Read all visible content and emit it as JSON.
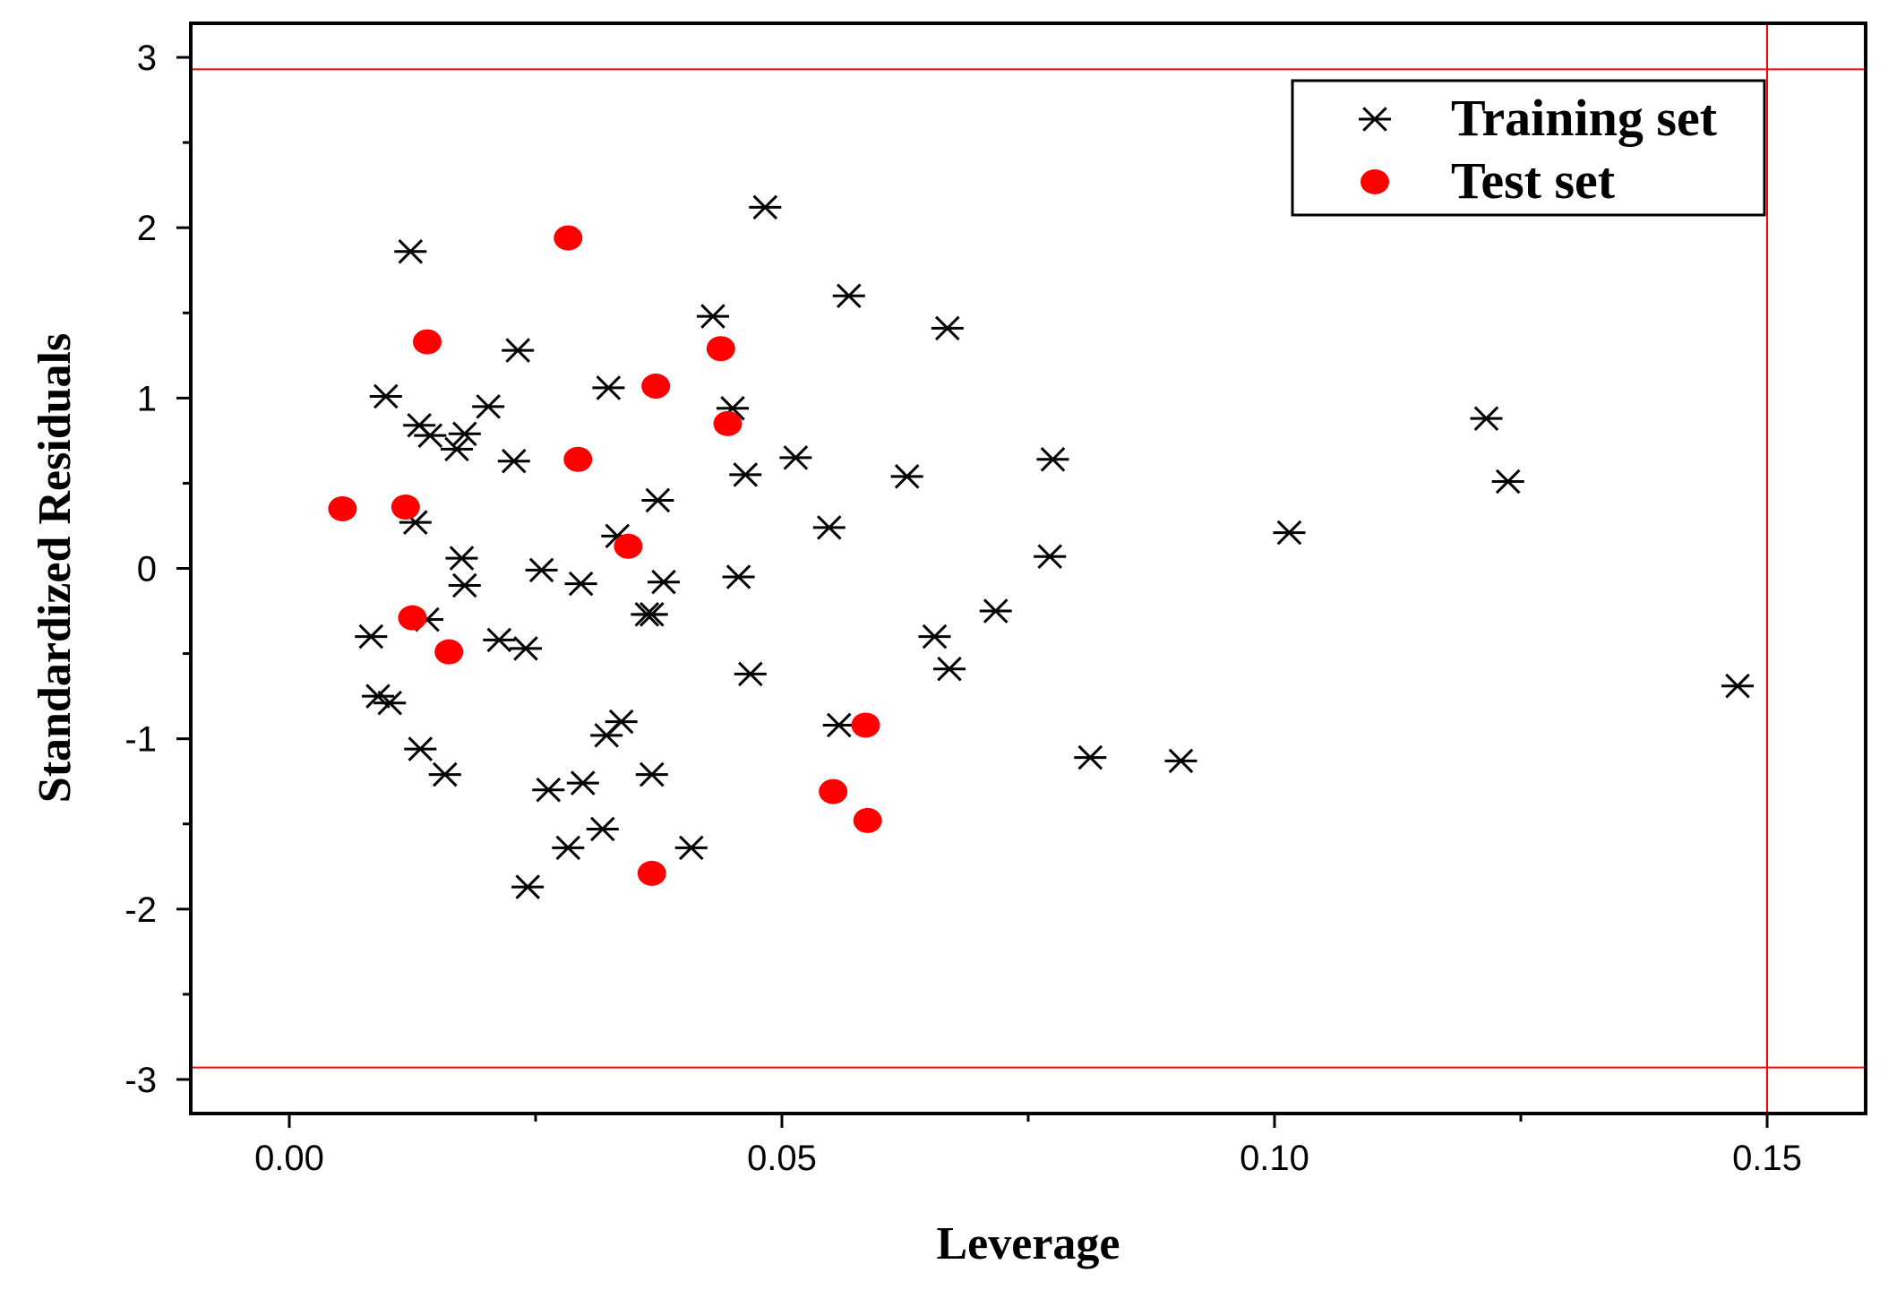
{
  "chart_data": {
    "type": "scatter",
    "xlabel": "Leverage",
    "ylabel": "Standardized Residuals",
    "xlim": [
      -0.01,
      0.16
    ],
    "ylim": [
      -3.2,
      3.2
    ],
    "xticks": [
      0.0,
      0.05,
      0.1,
      0.15
    ],
    "xtick_labels": [
      "0.00",
      "0.05",
      "0.10",
      "0.15"
    ],
    "yticks": [
      -3,
      -2,
      -1,
      0,
      1,
      2,
      3
    ],
    "ytick_labels": [
      "-3",
      "-2",
      "-1",
      "0",
      "1",
      "2",
      "3"
    ],
    "grid": false,
    "legend_position": "top-right",
    "reference_lines": {
      "horizontal": [
        2.93,
        -2.93
      ],
      "vertical": [
        0.15
      ],
      "color": "#ff0000"
    },
    "series": [
      {
        "name": "Training set",
        "marker": "asterisk",
        "color": "#000000",
        "points": [
          [
            0.0083,
            -0.4
          ],
          [
            0.009,
            -0.75
          ],
          [
            0.0098,
            1.01
          ],
          [
            0.0102,
            -0.79
          ],
          [
            0.0123,
            1.86
          ],
          [
            0.0128,
            0.27
          ],
          [
            0.0132,
            0.84
          ],
          [
            0.0133,
            -1.06
          ],
          [
            0.014,
            -0.3
          ],
          [
            0.0143,
            0.78
          ],
          [
            0.0158,
            -1.21
          ],
          [
            0.017,
            0.7
          ],
          [
            0.0175,
            0.06
          ],
          [
            0.0178,
            -0.1
          ],
          [
            0.0178,
            0.79
          ],
          [
            0.0202,
            0.95
          ],
          [
            0.0213,
            -0.42
          ],
          [
            0.0228,
            0.63
          ],
          [
            0.0232,
            1.28
          ],
          [
            0.024,
            -0.47
          ],
          [
            0.0242,
            -1.87
          ],
          [
            0.0256,
            -0.01
          ],
          [
            0.0263,
            -1.3
          ],
          [
            0.0283,
            -1.64
          ],
          [
            0.0296,
            -0.09
          ],
          [
            0.0298,
            -1.26
          ],
          [
            0.0318,
            -1.53
          ],
          [
            0.0322,
            -0.98
          ],
          [
            0.0324,
            1.06
          ],
          [
            0.0333,
            0.19
          ],
          [
            0.0337,
            -0.9
          ],
          [
            0.0363,
            -0.27
          ],
          [
            0.0368,
            -0.27
          ],
          [
            0.0368,
            -1.21
          ],
          [
            0.0374,
            0.4
          ],
          [
            0.038,
            -0.08
          ],
          [
            0.0408,
            -1.64
          ],
          [
            0.043,
            1.48
          ],
          [
            0.045,
            0.94
          ],
          [
            0.0456,
            -0.05
          ],
          [
            0.0463,
            0.55
          ],
          [
            0.0468,
            -0.62
          ],
          [
            0.0483,
            2.12
          ],
          [
            0.0514,
            0.65
          ],
          [
            0.0548,
            0.24
          ],
          [
            0.0558,
            -0.92
          ],
          [
            0.0568,
            1.6
          ],
          [
            0.0627,
            0.54
          ],
          [
            0.0655,
            -0.4
          ],
          [
            0.0668,
            1.41
          ],
          [
            0.067,
            -0.59
          ],
          [
            0.0717,
            -0.25
          ],
          [
            0.0772,
            0.07
          ],
          [
            0.0775,
            0.64
          ],
          [
            0.0813,
            -1.11
          ],
          [
            0.0905,
            -1.13
          ],
          [
            0.1015,
            0.21
          ],
          [
            0.1215,
            0.88
          ],
          [
            0.1237,
            0.51
          ],
          [
            0.147,
            -0.69
          ]
        ]
      },
      {
        "name": "Test set",
        "marker": "filled-circle",
        "color": "#ff0000",
        "points": [
          [
            0.0054,
            0.35
          ],
          [
            0.0118,
            0.36
          ],
          [
            0.0125,
            -0.29
          ],
          [
            0.014,
            1.33
          ],
          [
            0.0162,
            -0.49
          ],
          [
            0.0283,
            1.94
          ],
          [
            0.0293,
            0.64
          ],
          [
            0.0344,
            0.13
          ],
          [
            0.0368,
            -1.79
          ],
          [
            0.0372,
            1.07
          ],
          [
            0.0438,
            1.29
          ],
          [
            0.0445,
            0.85
          ],
          [
            0.0552,
            -1.31
          ],
          [
            0.0585,
            -0.92
          ],
          [
            0.0587,
            -1.48
          ]
        ]
      }
    ]
  }
}
